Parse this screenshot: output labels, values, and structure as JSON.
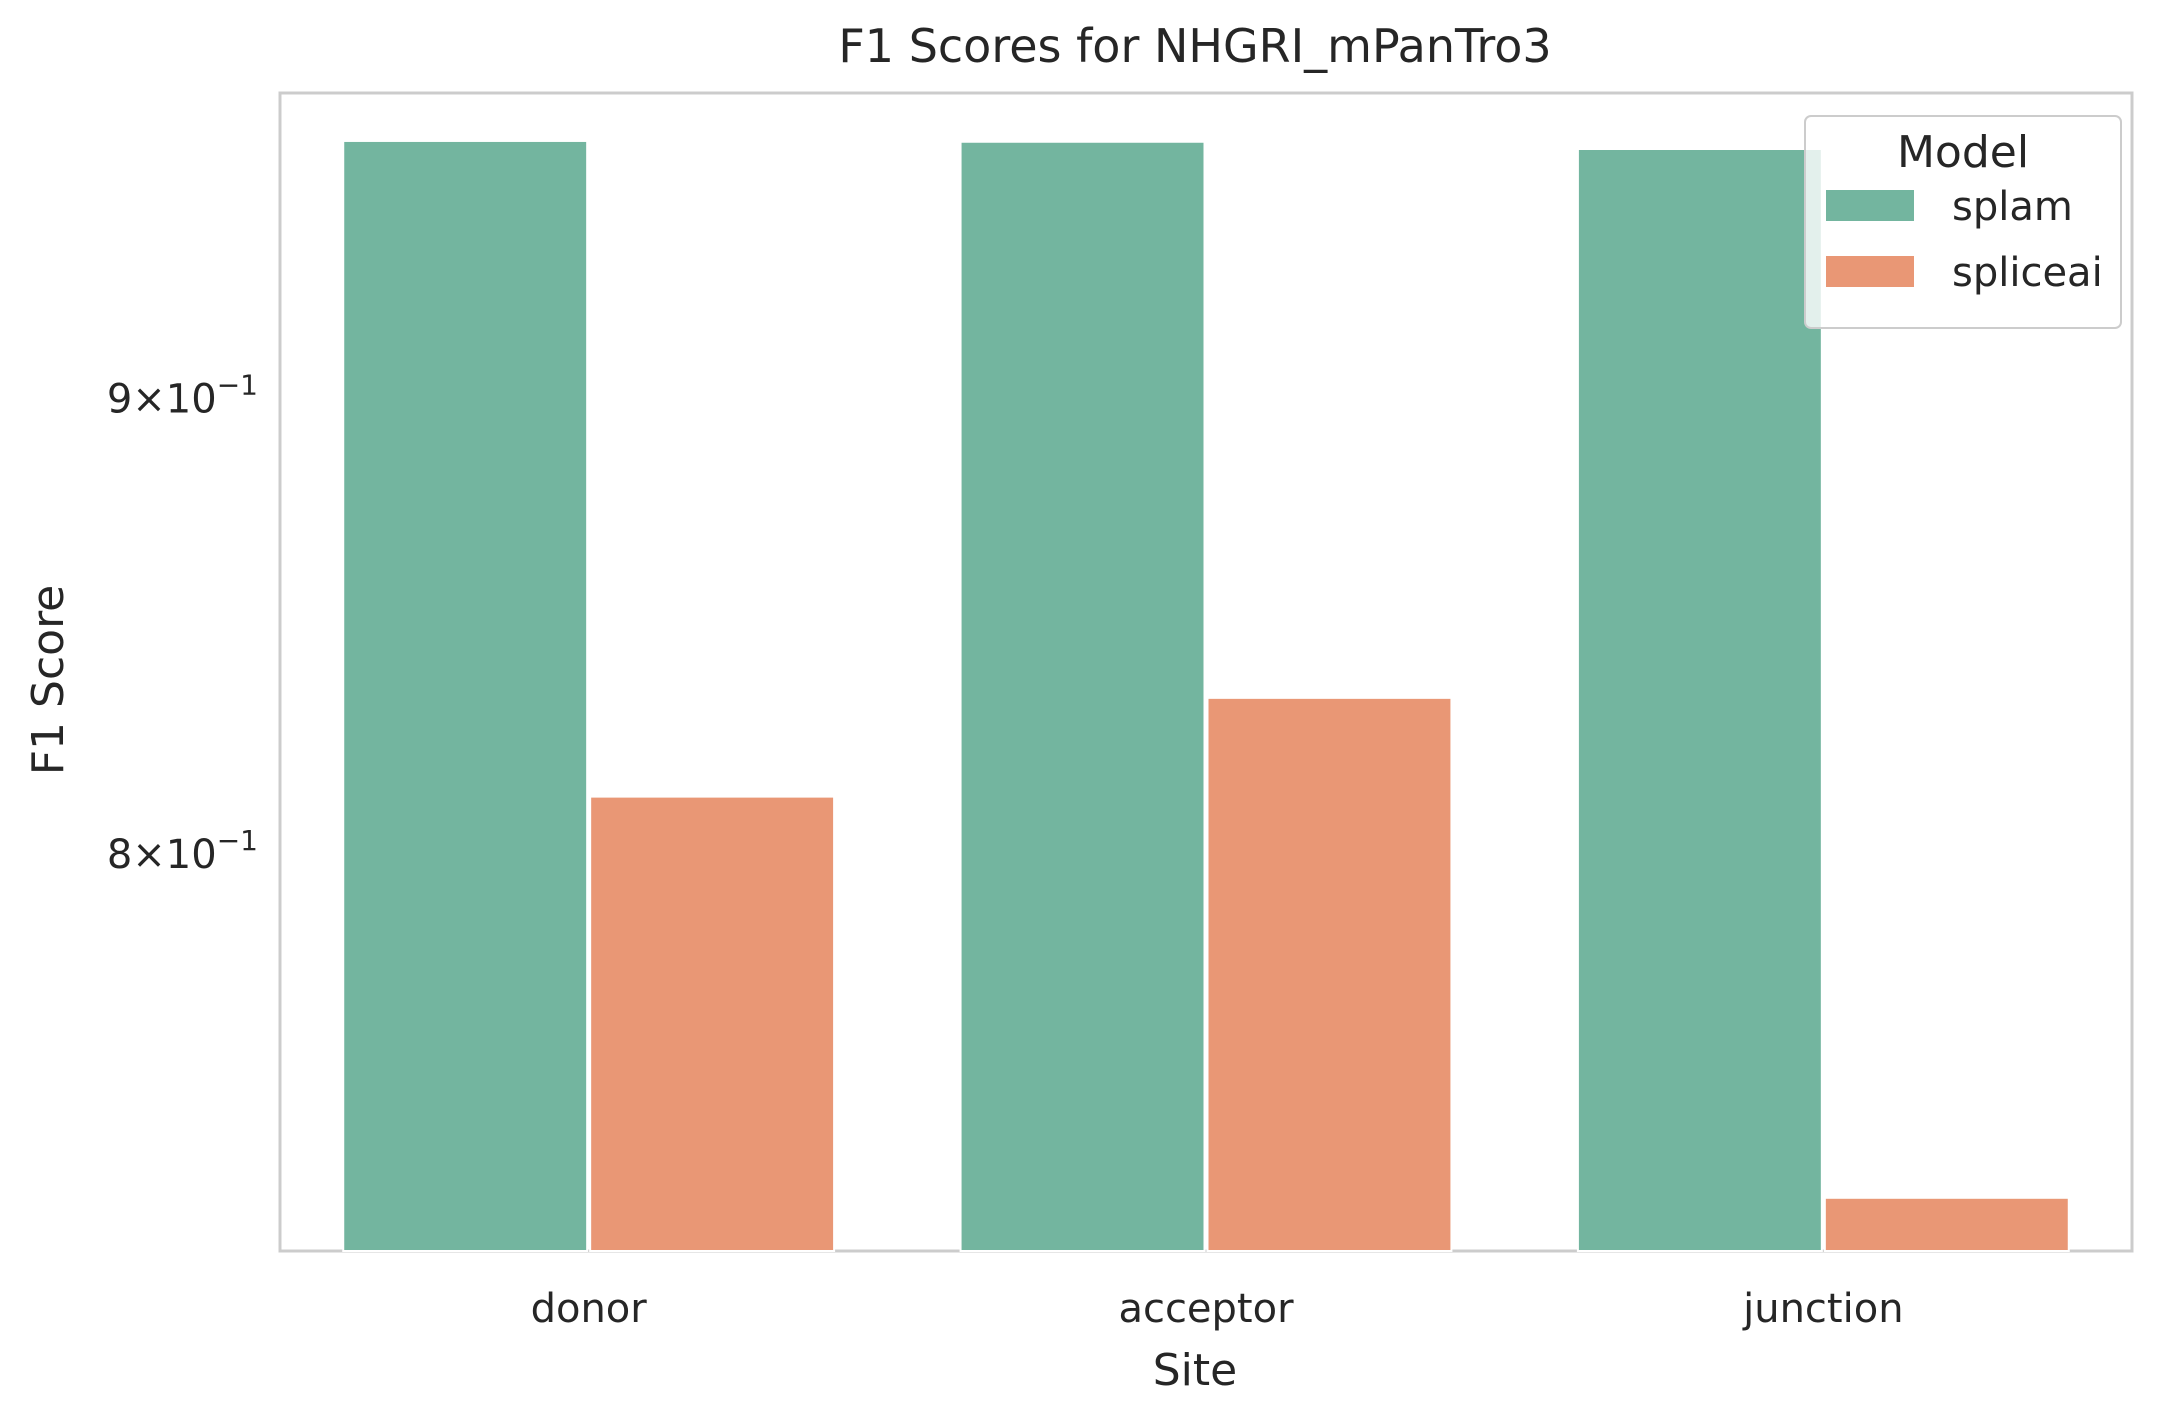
{
  "chart_data": {
    "type": "bar",
    "title": "F1 Scores for NHGRI_mPanTro3",
    "xlabel": "Site",
    "ylabel": "F1 Score",
    "yscale": "log",
    "ylim": [
      0.722,
      0.974
    ],
    "yticks": [
      {
        "value": 0.9,
        "mantissa": "9",
        "base": "10",
        "exponent": "−1"
      },
      {
        "value": 0.8,
        "mantissa": "8",
        "base": "10",
        "exponent": "−1"
      }
    ],
    "categories": [
      "donor",
      "acceptor",
      "junction"
    ],
    "series": [
      {
        "name": "splam",
        "color": "#73b59f",
        "values": [
          0.962,
          0.9618,
          0.96
        ]
      },
      {
        "name": "spliceai",
        "color": "#e99775",
        "values": [
          0.812,
          0.833,
          0.732
        ]
      }
    ],
    "legend": {
      "title": "Model",
      "position": "top-right"
    },
    "grid": false
  }
}
